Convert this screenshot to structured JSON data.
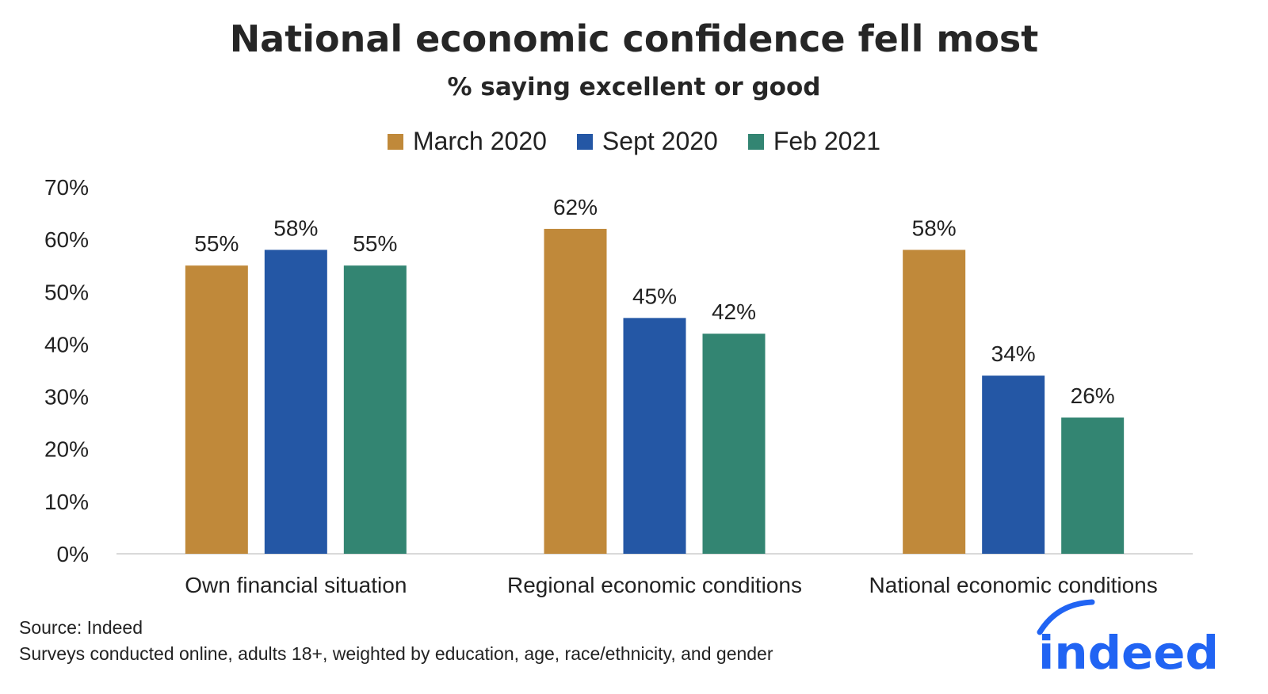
{
  "title": "National economic confidence fell most",
  "subtitle": "% saying excellent or good",
  "chart_data": {
    "type": "bar",
    "title": "National economic confidence fell most",
    "subtitle": "% saying excellent or good",
    "categories": [
      "Own financial situation",
      "Regional economic conditions",
      "National economic conditions"
    ],
    "series": [
      {
        "name": "March 2020",
        "color": "#c0893a",
        "values": [
          55,
          62,
          58
        ],
        "labels": [
          "55%",
          "62%",
          "58%"
        ]
      },
      {
        "name": "Sept 2020",
        "color": "#2457a5",
        "values": [
          58,
          45,
          34
        ],
        "labels": [
          "58%",
          "45%",
          "34%"
        ]
      },
      {
        "name": "Feb 2021",
        "color": "#338572",
        "values": [
          55,
          42,
          26
        ],
        "labels": [
          "55%",
          "42%",
          "26%"
        ]
      }
    ],
    "ylim": [
      0,
      70
    ],
    "yticks": [
      0,
      10,
      20,
      30,
      40,
      50,
      60,
      70
    ],
    "ytick_labels": [
      "0%",
      "10%",
      "20%",
      "30%",
      "40%",
      "50%",
      "60%",
      "70%"
    ],
    "xlabel": "",
    "ylabel": "",
    "grid": false,
    "legend": "top-center"
  },
  "source": {
    "line1": "Source: Indeed",
    "line2": "Surveys conducted online, adults 18+, weighted by education, age, race/ethnicity, and gender"
  },
  "logo": {
    "text": "indeed",
    "color": "#2164f3"
  }
}
